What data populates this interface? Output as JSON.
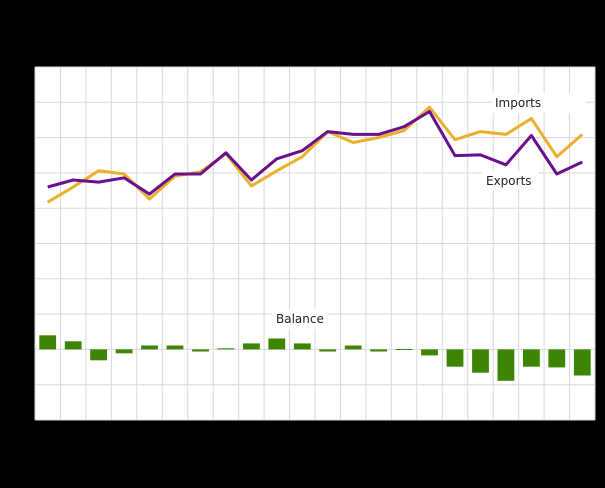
{
  "chart_data": {
    "type": "line+bar",
    "title": "",
    "xlabel": "",
    "ylabel": "",
    "grid": true,
    "legend": "inline labels",
    "x_count": 22,
    "series": [
      {
        "name": "Imports",
        "type": "line",
        "color": "#ebb02a",
        "values": [
          6.17,
          6.6,
          7.06,
          6.97,
          6.26,
          6.91,
          7.03,
          7.54,
          6.63,
          7.06,
          7.46,
          8.17,
          7.86,
          8.0,
          8.2,
          8.86,
          7.94,
          8.17,
          8.09,
          8.54,
          7.46,
          8.09
        ]
      },
      {
        "name": "Exports",
        "type": "line",
        "color": "#6a0f8e",
        "values": [
          6.6,
          6.8,
          6.74,
          6.86,
          6.4,
          6.97,
          6.97,
          7.57,
          6.8,
          7.4,
          7.63,
          8.17,
          8.09,
          8.09,
          8.31,
          8.74,
          7.49,
          7.51,
          7.23,
          8.06,
          6.97,
          7.31
        ]
      },
      {
        "name": "Balance",
        "type": "bar",
        "color": "#3d8504",
        "values": [
          0.4,
          0.23,
          -0.31,
          -0.11,
          0.11,
          0.11,
          -0.06,
          0.03,
          0.17,
          0.31,
          0.17,
          -0.06,
          0.11,
          -0.06,
          0.01,
          -0.17,
          -0.49,
          -0.66,
          -0.89,
          -0.49,
          -0.51,
          -0.74
        ]
      }
    ],
    "y_gridlines": 10,
    "ylim": [
      0,
      10
    ],
    "balance_zero_gridline": 2,
    "annotations": [
      "Imports",
      "Exports",
      "Balance"
    ]
  },
  "labels": {
    "imports": "Imports",
    "exports": "Exports",
    "balance": "Balance"
  },
  "colors": {
    "background": "#000000",
    "plot": "#ffffff",
    "grid": "#d9d9d9",
    "imports": "#ebb02a",
    "exports": "#6a0f8e",
    "balance": "#3d8504"
  }
}
